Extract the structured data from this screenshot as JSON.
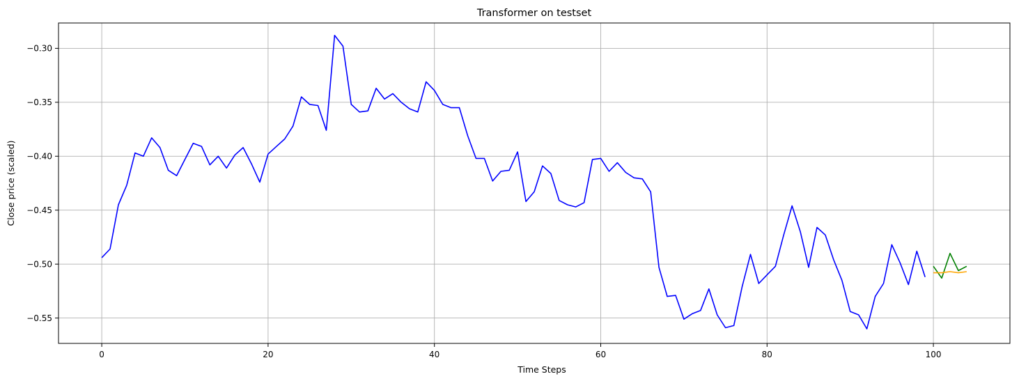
{
  "chart_data": {
    "type": "line",
    "title": "Transformer on testset",
    "xlabel": "Time Steps",
    "ylabel": "Close price (scaled)",
    "xlim": [
      -5.2,
      109.2
    ],
    "ylim": [
      -0.5735,
      -0.2765
    ],
    "xticks": [
      0,
      20,
      40,
      60,
      80,
      100
    ],
    "yticks": [
      -0.55,
      -0.5,
      -0.45,
      -0.4,
      -0.35,
      -0.3
    ],
    "ytick_labels": [
      "−0.55",
      "−0.50",
      "−0.45",
      "−0.40",
      "−0.35",
      "−0.30"
    ],
    "grid": true,
    "series": [
      {
        "color": "#0000ff",
        "x": [
          0,
          1,
          2,
          3,
          4,
          5,
          6,
          7,
          8,
          9,
          10,
          11,
          12,
          13,
          14,
          15,
          16,
          17,
          18,
          19,
          20,
          21,
          22,
          23,
          24,
          25,
          26,
          27,
          28,
          29,
          30,
          31,
          32,
          33,
          34,
          35,
          36,
          37,
          38,
          39,
          40,
          41,
          42,
          43,
          44,
          45,
          46,
          47,
          48,
          49,
          50,
          51,
          52,
          53,
          54,
          55,
          56,
          57,
          58,
          59,
          60,
          61,
          62,
          63,
          64,
          65,
          66,
          67,
          68,
          69,
          70,
          71,
          72,
          73,
          74,
          75,
          76,
          77,
          78,
          79,
          80,
          81,
          82,
          83,
          84,
          85,
          86,
          87,
          88,
          89,
          90,
          91,
          92,
          93,
          94,
          95,
          96,
          97,
          98,
          99
        ],
        "values": [
          -0.494,
          -0.486,
          -0.445,
          -0.427,
          -0.397,
          -0.4,
          -0.383,
          -0.392,
          -0.413,
          -0.418,
          -0.403,
          -0.388,
          -0.391,
          -0.408,
          -0.4,
          -0.411,
          -0.399,
          -0.392,
          -0.407,
          -0.424,
          -0.398,
          -0.391,
          -0.384,
          -0.372,
          -0.345,
          -0.352,
          -0.353,
          -0.376,
          -0.288,
          -0.298,
          -0.352,
          -0.359,
          -0.358,
          -0.337,
          -0.347,
          -0.342,
          -0.35,
          -0.356,
          -0.359,
          -0.331,
          -0.339,
          -0.352,
          -0.355,
          -0.355,
          -0.381,
          -0.402,
          -0.402,
          -0.423,
          -0.414,
          -0.413,
          -0.396,
          -0.442,
          -0.433,
          -0.409,
          -0.416,
          -0.441,
          -0.445,
          -0.447,
          -0.443,
          -0.403,
          -0.402,
          -0.414,
          -0.406,
          -0.415,
          -0.42,
          -0.421,
          -0.433,
          -0.503,
          -0.53,
          -0.529,
          -0.551,
          -0.546,
          -0.543,
          -0.523,
          -0.547,
          -0.559,
          -0.557,
          -0.521,
          -0.491,
          -0.518,
          -0.51,
          -0.502,
          -0.473,
          -0.446,
          -0.47,
          -0.503,
          -0.466,
          -0.473,
          -0.496,
          -0.515,
          -0.544,
          -0.547,
          -0.56,
          -0.53,
          -0.518,
          -0.482,
          -0.499,
          -0.519,
          -0.488,
          -0.512
        ]
      },
      {
        "color": "#008000",
        "x": [
          100,
          101,
          102,
          103,
          104
        ],
        "values": [
          -0.502,
          -0.513,
          -0.49,
          -0.506,
          -0.502
        ]
      },
      {
        "color": "#ffa500",
        "x": [
          100,
          101,
          102,
          103,
          104
        ],
        "values": [
          -0.508,
          -0.508,
          -0.507,
          -0.508,
          -0.507
        ]
      }
    ]
  }
}
